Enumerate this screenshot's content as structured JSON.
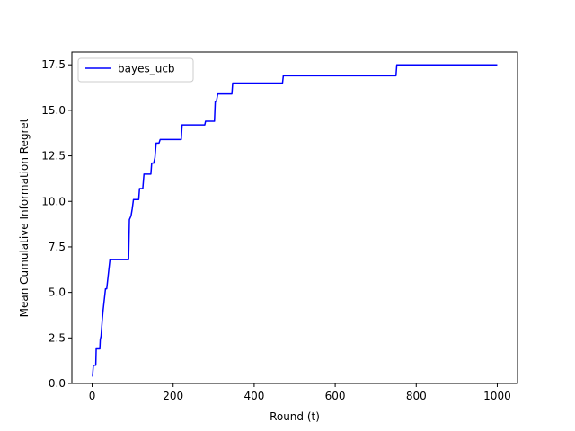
{
  "chart_data": {
    "type": "line",
    "title": "",
    "xlabel": "Round (t)",
    "ylabel": "Mean Cumulative Information Regret",
    "xlim": [
      -50,
      1050
    ],
    "ylim": [
      0,
      18.2
    ],
    "xticks": [
      0,
      200,
      400,
      600,
      800,
      1000
    ],
    "xtick_labels": [
      "0",
      "200",
      "400",
      "600",
      "800",
      "1000"
    ],
    "yticks": [
      0,
      2.5,
      5,
      7.5,
      10,
      12.5,
      15,
      17.5
    ],
    "ytick_labels": [
      "0.0",
      "2.5",
      "5.0",
      "7.5",
      "10.0",
      "12.5",
      "15.0",
      "17.5"
    ],
    "grid": false,
    "legend_position": "upper-left",
    "series": [
      {
        "name": "bayes_ucb",
        "color": "#0000ff",
        "x": [
          0,
          1,
          3,
          4,
          9,
          10,
          19,
          20,
          22,
          25,
          27,
          30,
          33,
          36,
          40,
          44,
          90,
          92,
          96,
          99,
          102,
          115,
          117,
          125,
          128,
          135,
          145,
          147,
          152,
          155,
          158,
          160,
          165,
          168,
          220,
          222,
          278,
          280,
          302,
          304,
          307,
          310,
          345,
          347,
          470,
          472,
          750,
          752,
          1000
        ],
        "y": [
          0.4,
          0.4,
          1.0,
          1.0,
          1.0,
          1.9,
          1.9,
          2.4,
          2.6,
          3.5,
          4.0,
          4.6,
          5.2,
          5.2,
          6.0,
          6.8,
          6.8,
          9.0,
          9.2,
          9.6,
          10.1,
          10.1,
          10.7,
          10.7,
          11.5,
          11.5,
          11.5,
          12.1,
          12.1,
          12.4,
          13.2,
          13.2,
          13.2,
          13.4,
          13.4,
          14.2,
          14.2,
          14.4,
          14.4,
          15.5,
          15.5,
          15.9,
          15.9,
          16.5,
          16.5,
          16.9,
          16.9,
          17.5,
          17.5
        ]
      }
    ]
  }
}
